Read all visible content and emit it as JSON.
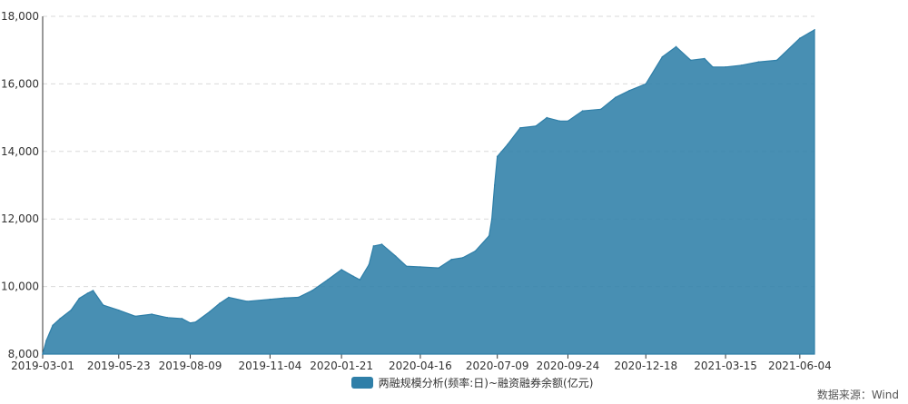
{
  "chart_data": {
    "type": "area",
    "title": "",
    "xlabel": "",
    "ylabel": "",
    "ylim": [
      8000,
      18000
    ],
    "grid": true,
    "legend_position": "bottom",
    "yticks": [
      "8,000",
      "10,000",
      "12,000",
      "14,000",
      "16,000",
      "18,000"
    ],
    "ytick_values": [
      8000,
      10000,
      12000,
      14000,
      16000,
      18000
    ],
    "xticks": [
      "2019-03-01",
      "2019-05-23",
      "2019-08-09",
      "2019-11-04",
      "2020-01-21",
      "2020-04-16",
      "2020-07-09",
      "2020-09-24",
      "2020-12-18",
      "2021-03-15",
      "2021-06-04"
    ],
    "series": [
      {
        "name": "两融规模分析(频率:日)~融资融券余额(亿元)",
        "color": "#2f7fa8",
        "x": [
          "2019-03-01",
          "2019-03-05",
          "2019-03-12",
          "2019-03-20",
          "2019-04-01",
          "2019-04-10",
          "2019-04-19",
          "2019-04-25",
          "2019-05-06",
          "2019-05-23",
          "2019-06-10",
          "2019-06-28",
          "2019-07-15",
          "2019-07-31",
          "2019-08-09",
          "2019-08-15",
          "2019-08-30",
          "2019-09-10",
          "2019-09-20",
          "2019-10-10",
          "2019-11-04",
          "2019-11-20",
          "2019-12-05",
          "2019-12-20",
          "2020-01-06",
          "2020-01-21",
          "2020-02-03",
          "2020-02-10",
          "2020-02-20",
          "2020-02-25",
          "2020-03-05",
          "2020-03-20",
          "2020-04-01",
          "2020-04-16",
          "2020-05-06",
          "2020-05-20",
          "2020-06-01",
          "2020-06-15",
          "2020-06-30",
          "2020-07-03",
          "2020-07-06",
          "2020-07-09",
          "2020-07-20",
          "2020-08-03",
          "2020-08-20",
          "2020-09-01",
          "2020-09-15",
          "2020-09-24",
          "2020-10-10",
          "2020-10-30",
          "2020-11-15",
          "2020-11-30",
          "2020-12-18",
          "2021-01-05",
          "2021-01-20",
          "2021-02-05",
          "2021-02-20",
          "2021-03-01",
          "2021-03-15",
          "2021-04-01",
          "2021-04-20",
          "2021-05-10",
          "2021-06-04",
          "2021-06-20"
        ],
        "values": [
          8000,
          8400,
          8850,
          9050,
          9300,
          9650,
          9800,
          9880,
          9450,
          9300,
          9120,
          9180,
          9080,
          9050,
          8920,
          8950,
          9250,
          9500,
          9680,
          9560,
          9620,
          9660,
          9680,
          9880,
          10200,
          10500,
          10300,
          10200,
          10650,
          11200,
          11250,
          10900,
          10600,
          10580,
          10550,
          10800,
          10850,
          11050,
          11500,
          12000,
          13000,
          13850,
          14200,
          14700,
          14750,
          15000,
          14900,
          14900,
          15200,
          15250,
          15600,
          15800,
          16000,
          16800,
          17100,
          16700,
          16750,
          16500,
          16500,
          16550,
          16650,
          16700,
          17350,
          17600
        ]
      }
    ]
  },
  "legend": {
    "label": "两融规模分析(频率:日)~融资融券余额(亿元)",
    "color": "#2f7fa8"
  },
  "source": "数据来源：Wind"
}
